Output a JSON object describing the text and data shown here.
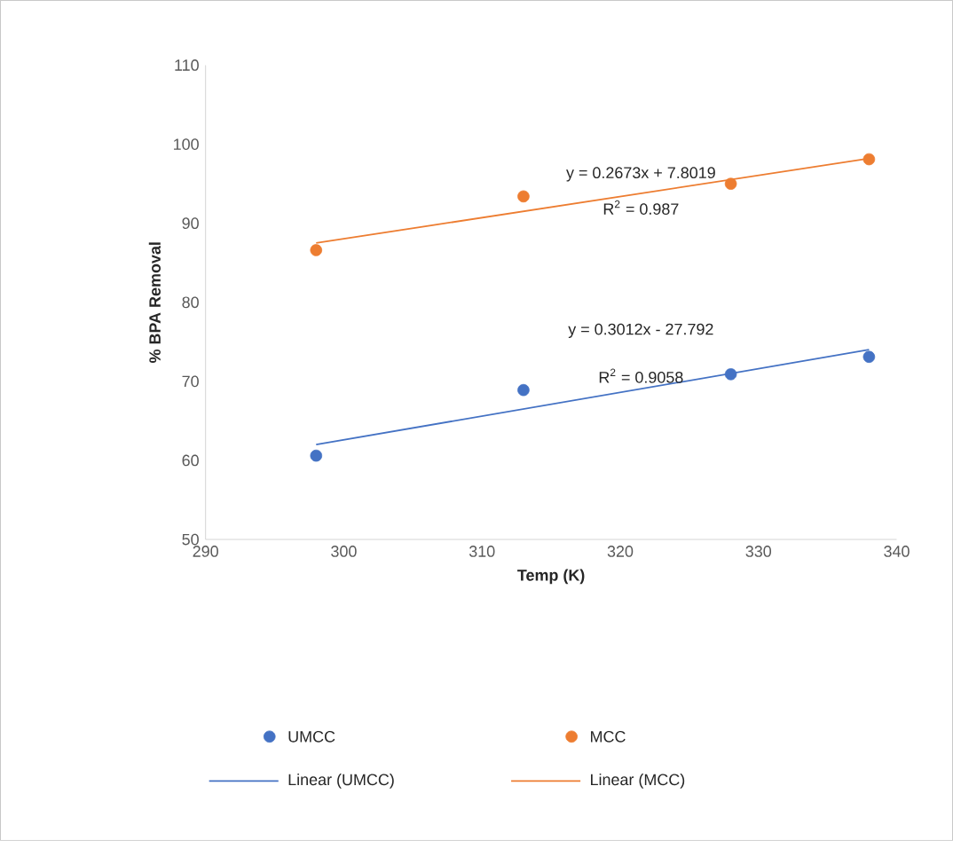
{
  "chart_data": {
    "type": "scatter",
    "xlabel": "Temp (K)",
    "ylabel": "% BPA Removal",
    "xlim": [
      290,
      340
    ],
    "xticks": [
      290,
      300,
      310,
      320,
      330,
      340
    ],
    "ylim": [
      50,
      110
    ],
    "yticks": [
      50,
      60,
      70,
      80,
      90,
      100,
      110
    ],
    "grid": false,
    "legend": "bottom",
    "series": [
      {
        "name": "UMCC",
        "marker": "circle",
        "color": "#4472c4",
        "x": [
          298,
          313,
          328,
          338
        ],
        "values": [
          60.6,
          68.9,
          70.9,
          73.1
        ]
      },
      {
        "name": "MCC",
        "marker": "circle",
        "color": "#ed7d31",
        "x": [
          298,
          313,
          328,
          338
        ],
        "values": [
          86.6,
          93.4,
          95.0,
          98.1
        ]
      },
      {
        "name": "Linear (UMCC)",
        "type": "line",
        "marker": "none",
        "color": "#4472c4",
        "x": [
          298,
          338
        ],
        "values": [
          62.0,
          74.0
        ]
      },
      {
        "name": "Linear (MCC)",
        "type": "line",
        "marker": "none",
        "color": "#ed7d31",
        "x": [
          298,
          338
        ],
        "values": [
          87.5,
          98.2
        ]
      }
    ],
    "annotations": [
      "y = 0.2673x + 7.8019",
      "R$^{2}$ = 0.987",
      "y = 0.3012x - 27.792",
      "R$^{2}$ = 0.9058"
    ]
  }
}
